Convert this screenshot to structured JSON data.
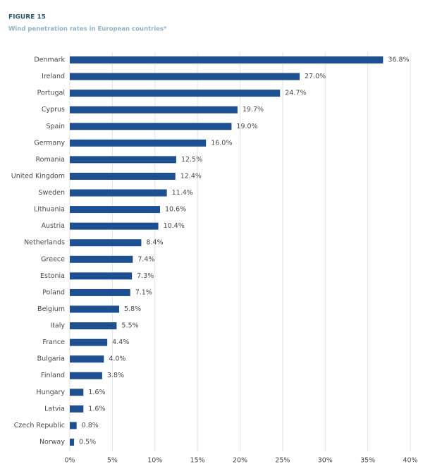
{
  "chart_data": {
    "type": "barh",
    "title": "FIGURE 15",
    "subtitle": "Wind penetration rates in European countries*",
    "categories": [
      "Denmark",
      "Ireland",
      "Portugal",
      "Cyprus",
      "Spain",
      "Germany",
      "Romania",
      "United Kingdom",
      "Sweden",
      "Lithuania",
      "Austria",
      "Netherlands",
      "Greece",
      "Estonia",
      "Poland",
      "Belgium",
      "Italy",
      "France",
      "Bulgaria",
      "Finland",
      "Hungary",
      "Latvia",
      "Czech Republic",
      "Norway"
    ],
    "values": [
      36.8,
      27.0,
      24.7,
      19.7,
      19.0,
      16.0,
      12.5,
      12.4,
      11.4,
      10.6,
      10.4,
      8.4,
      7.4,
      7.3,
      7.1,
      5.8,
      5.5,
      4.4,
      4.0,
      3.8,
      1.6,
      1.6,
      0.8,
      0.5
    ],
    "value_labels": [
      "36.8%",
      "27.0%",
      "24.7%",
      "19.7%",
      "19.0%",
      "16.0%",
      "12.5%",
      "12.4%",
      "11.4%",
      "10.6%",
      "10.4%",
      "8.4%",
      "7.4%",
      "7.3%",
      "7.1%",
      "5.8%",
      "5.5%",
      "4.4%",
      "4.0%",
      "3.8%",
      "1.6%",
      "1.6%",
      "0.8%",
      "0.5%"
    ],
    "color": "#1d4f91",
    "xlim": [
      0,
      40
    ],
    "xticks": [
      {
        "value": 0,
        "label": "0%"
      },
      {
        "value": 5,
        "label": "5%"
      },
      {
        "value": 10,
        "label": "10%"
      },
      {
        "value": 15,
        "label": "15%"
      },
      {
        "value": 20,
        "label": "20%"
      },
      {
        "value": 25,
        "label": "25%"
      },
      {
        "value": 30,
        "label": "30%"
      },
      {
        "value": 35,
        "label": "35%"
      },
      {
        "value": 40,
        "label": "40%"
      }
    ],
    "grid": true
  }
}
